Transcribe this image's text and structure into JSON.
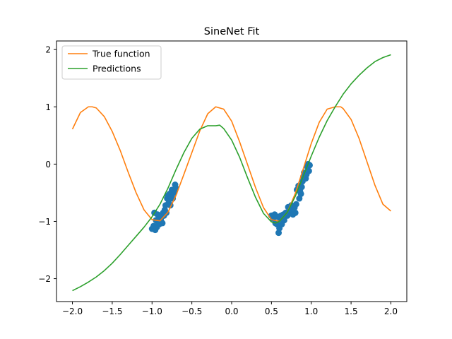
{
  "chart_data": {
    "type": "line",
    "title": "SineNet Fit",
    "xlabel": "",
    "ylabel": "",
    "xlim": [
      -2.2,
      2.2
    ],
    "ylim": [
      -2.4,
      2.15
    ],
    "xticks": [
      -2.0,
      -1.5,
      -1.0,
      -0.5,
      0.0,
      0.5,
      1.0,
      1.5,
      2.0
    ],
    "xtick_labels": [
      "−2.0",
      "−1.5",
      "−1.0",
      "−0.5",
      "0.0",
      "0.5",
      "1.0",
      "1.5",
      "2.0"
    ],
    "yticks": [
      -2,
      -1,
      0,
      1,
      2
    ],
    "ytick_labels": [
      "−2",
      "−1",
      "0",
      "1",
      "2"
    ],
    "grid": false,
    "legend_position": "upper-left",
    "series": [
      {
        "name": "True function",
        "kind": "line",
        "color": "#ff7f0e",
        "x": [
          -2.0,
          -1.9,
          -1.8,
          -1.75,
          -1.7,
          -1.6,
          -1.5,
          -1.4,
          -1.3,
          -1.2,
          -1.1,
          -1.0,
          -0.9,
          -0.8,
          -0.7,
          -0.6,
          -0.5,
          -0.4,
          -0.3,
          -0.2,
          -0.1,
          0.0,
          0.1,
          0.2,
          0.3,
          0.4,
          0.5,
          0.6,
          0.7,
          0.8,
          0.9,
          1.0,
          1.1,
          1.2,
          1.3,
          1.37,
          1.4,
          1.5,
          1.6,
          1.7,
          1.8,
          1.9,
          2.0
        ],
        "y": [
          0.61,
          0.9,
          1.0,
          1.0,
          0.98,
          0.83,
          0.57,
          0.24,
          -0.14,
          -0.5,
          -0.8,
          -0.97,
          -0.99,
          -0.84,
          -0.55,
          -0.18,
          0.2,
          0.58,
          0.88,
          1.0,
          0.96,
          0.75,
          0.39,
          -0.01,
          -0.41,
          -0.76,
          -0.97,
          -1.0,
          -0.84,
          -0.51,
          -0.08,
          0.36,
          0.73,
          0.96,
          1.0,
          1.0,
          0.97,
          0.78,
          0.45,
          0.04,
          -0.37,
          -0.7,
          -0.82
        ]
      },
      {
        "name": "Predictions",
        "kind": "line",
        "color": "#2ca02c",
        "x": [
          -2.0,
          -1.9,
          -1.8,
          -1.7,
          -1.6,
          -1.5,
          -1.4,
          -1.3,
          -1.2,
          -1.1,
          -1.0,
          -0.9,
          -0.8,
          -0.7,
          -0.6,
          -0.5,
          -0.4,
          -0.3,
          -0.2,
          -0.15,
          -0.1,
          0.0,
          0.1,
          0.2,
          0.3,
          0.4,
          0.5,
          0.55,
          0.6,
          0.7,
          0.8,
          0.9,
          1.0,
          1.1,
          1.2,
          1.3,
          1.4,
          1.5,
          1.6,
          1.7,
          1.8,
          1.9,
          2.0
        ],
        "y": [
          -2.21,
          -2.14,
          -2.06,
          -1.97,
          -1.86,
          -1.73,
          -1.58,
          -1.42,
          -1.26,
          -1.1,
          -0.92,
          -0.7,
          -0.42,
          -0.1,
          0.2,
          0.45,
          0.61,
          0.67,
          0.67,
          0.68,
          0.62,
          0.42,
          0.12,
          -0.24,
          -0.58,
          -0.86,
          -1.01,
          -1.03,
          -1.0,
          -0.84,
          -0.56,
          -0.21,
          0.14,
          0.47,
          0.76,
          1.0,
          1.22,
          1.4,
          1.55,
          1.68,
          1.79,
          1.86,
          1.91
        ]
      },
      {
        "name": "",
        "kind": "scatter",
        "color": "#1f77b4",
        "x": [
          -1.0,
          -0.98,
          -0.97,
          -0.96,
          -0.95,
          -0.94,
          -0.93,
          -0.92,
          -0.91,
          -0.9,
          -0.89,
          -0.88,
          -0.87,
          -0.86,
          -0.85,
          -0.84,
          -0.83,
          -0.82,
          -0.81,
          -0.8,
          -0.79,
          -0.78,
          -0.77,
          -0.76,
          -0.75,
          -0.74,
          -0.73,
          -0.72,
          -0.71,
          -0.7,
          0.5,
          0.52,
          0.54,
          0.55,
          0.57,
          0.58,
          0.59,
          0.6,
          0.61,
          0.62,
          0.63,
          0.65,
          0.66,
          0.68,
          0.7,
          0.71,
          0.73,
          0.74,
          0.75,
          0.77,
          0.79,
          0.8,
          0.81,
          0.82,
          0.84,
          0.85,
          0.86,
          0.87,
          0.88,
          0.89,
          0.9,
          0.91,
          0.93,
          0.94,
          0.95,
          0.96,
          0.97,
          0.98
        ],
        "y": [
          -1.13,
          -1.08,
          -0.85,
          -1.15,
          -0.98,
          -1.1,
          -0.88,
          -1.02,
          -1.05,
          -0.95,
          -0.98,
          -0.92,
          -1.03,
          -0.85,
          -0.9,
          -0.8,
          -0.72,
          -0.85,
          -0.6,
          -0.55,
          -0.68,
          -0.52,
          -0.72,
          -0.58,
          -0.45,
          -0.6,
          -0.45,
          -0.5,
          -0.36,
          -0.42,
          -0.9,
          -0.95,
          -0.88,
          -1.03,
          -1.05,
          -0.92,
          -1.2,
          -1.12,
          -0.95,
          -0.9,
          -1.05,
          -0.88,
          -0.98,
          -0.85,
          -0.9,
          -0.75,
          -0.82,
          -0.78,
          -0.72,
          -0.88,
          -0.76,
          -0.85,
          -0.7,
          -0.45,
          -0.38,
          -0.6,
          -0.48,
          -0.52,
          -0.4,
          -0.3,
          -0.22,
          -0.15,
          -0.25,
          -0.18,
          -0.05,
          0.0,
          -0.12,
          -0.02
        ]
      }
    ]
  }
}
